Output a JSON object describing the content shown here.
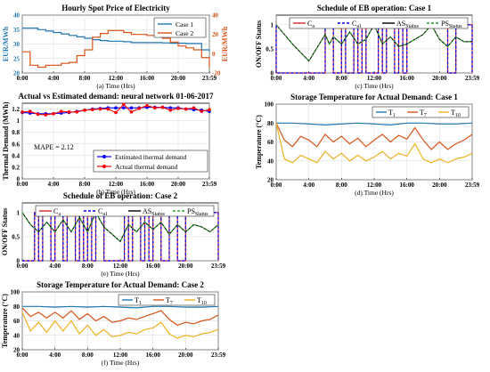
{
  "chart_data": [
    {
      "id": "a",
      "type": "line",
      "title": "Hourly Spot Price of Electricity",
      "caption": "(a) Time (Hrs)",
      "ylabel_left": "EUR/MWh",
      "ylabel_right": "EUR/MWh",
      "xticks": [
        "0:00",
        "4:00",
        "8:00",
        "12:00",
        "16:00",
        "20:00",
        "23:59"
      ],
      "xlim": [
        0,
        24
      ],
      "ylim_left": [
        20,
        40
      ],
      "yticks_left": [
        "20",
        "25",
        "30",
        "35",
        "40"
      ],
      "ylim_right": [
        -20,
        40
      ],
      "yticks_right": [
        "-20",
        "0",
        "20",
        "40"
      ],
      "legend": [
        "Case 1",
        "Case 2"
      ],
      "series": [
        {
          "name": "Case 1",
          "color": "#1f77b4",
          "axis": "left",
          "x": [
            0,
            1,
            2,
            3,
            4,
            5,
            6,
            7,
            8,
            9,
            10,
            11,
            12,
            13,
            14,
            15,
            16,
            17,
            18,
            19,
            20,
            21,
            22,
            23,
            24
          ],
          "y": [
            35.5,
            35.5,
            35,
            34.5,
            34,
            33.5,
            33,
            32.5,
            32,
            31.5,
            31.2,
            31,
            31,
            30.8,
            30.5,
            30.5,
            30.5,
            30.5,
            30.4,
            30.3,
            30.3,
            30.2,
            30.2,
            28,
            27.5
          ]
        },
        {
          "name": "Case 2",
          "color": "#d95319",
          "axis": "right",
          "x": [
            0,
            1,
            2,
            3,
            4,
            5,
            6,
            7,
            8,
            9,
            10,
            11,
            12,
            13,
            14,
            15,
            16,
            17,
            18,
            19,
            20,
            21,
            22,
            23,
            24
          ],
          "y": [
            2,
            -12,
            -14,
            -12,
            -12,
            -10,
            -9,
            -2,
            4,
            17,
            21,
            24,
            24,
            22,
            20,
            20,
            19,
            18,
            16,
            12,
            8,
            6,
            4,
            -4,
            -14
          ]
        }
      ]
    },
    {
      "id": "b",
      "type": "line",
      "title": "Actual vs Estimated demand: neural network 01-06-2017",
      "caption": "(b) Time (Hrs)",
      "ylabel": "Thermal Demand (MWh)",
      "xticks": [
        "0:00",
        "4:00",
        "8:00",
        "12:00",
        "16:00",
        "20:00",
        "23:59"
      ],
      "xlim": [
        0,
        24
      ],
      "ylim": [
        0,
        1.3
      ],
      "yticks": [
        "0",
        "0.2",
        "0.4",
        "0.6",
        "0.8",
        "1",
        "1.2"
      ],
      "annotation": "MAPE = 2.12",
      "legend": [
        "Estimated thermal demand",
        "Actual  thermal demand"
      ],
      "series": [
        {
          "name": "Estimated thermal demand",
          "color": "#0000ff",
          "x": [
            0,
            1,
            2,
            3,
            4,
            5,
            6,
            7,
            8,
            9,
            10,
            11,
            12,
            13,
            14,
            15,
            16,
            17,
            18,
            19,
            20,
            21,
            22,
            23,
            24
          ],
          "y": [
            1.14,
            1.13,
            1.12,
            1.12,
            1.12,
            1.13,
            1.14,
            1.16,
            1.18,
            1.2,
            1.21,
            1.22,
            1.22,
            1.22,
            1.22,
            1.22,
            1.23,
            1.23,
            1.23,
            1.22,
            1.22,
            1.2,
            1.19,
            1.18,
            1.16
          ]
        },
        {
          "name": "Actual  thermal demand",
          "color": "#ff0000",
          "x": [
            0,
            1,
            2,
            3,
            4,
            5,
            6,
            7,
            8,
            9,
            10,
            11,
            12,
            13,
            14,
            15,
            16,
            17,
            18,
            19,
            20,
            21,
            22,
            23,
            24
          ],
          "y": [
            1.15,
            1.16,
            1.11,
            1.1,
            1.12,
            1.16,
            1.15,
            1.15,
            1.18,
            1.19,
            1.2,
            1.2,
            1.14,
            1.28,
            1.15,
            1.21,
            1.26,
            1.22,
            1.23,
            1.18,
            1.21,
            1.2,
            1.22,
            1.16,
            1.19
          ]
        }
      ]
    },
    {
      "id": "c",
      "type": "line",
      "title": "Schedule of EB operation: Case 1",
      "caption": "(c) Time (Hrs)",
      "ylabel": "ON/OFF Status",
      "xticks": [
        "0:00",
        "4:00",
        "8:00",
        "12:00",
        "16:00",
        "20:00",
        "23:59"
      ],
      "xlim": [
        0,
        24
      ],
      "ylim": [
        0,
        1.2
      ],
      "yticks": [
        "0",
        "0.5",
        "1"
      ],
      "legend_labels": [
        {
          "main": "C",
          "sub": "a"
        },
        {
          "main": "C",
          "sub": "a1"
        },
        {
          "main": "AS",
          "sub": "Status"
        },
        {
          "main": "PS",
          "sub": "Status"
        }
      ],
      "colors": [
        "#d62728",
        "#0000ff",
        "#000000",
        "#2ca02c"
      ],
      "on_intervals": [
        [
          0,
          0
        ],
        [
          6,
          7
        ],
        [
          8,
          8.5
        ],
        [
          9.5,
          10
        ],
        [
          10.5,
          11
        ],
        [
          12.5,
          13
        ],
        [
          13.5,
          14.5
        ],
        [
          15,
          15.5
        ],
        [
          16,
          21
        ],
        [
          22,
          24
        ]
      ],
      "status_x": [
        0,
        2,
        4,
        6,
        6.5,
        7,
        8,
        9,
        10,
        11,
        12,
        13,
        14,
        15,
        16,
        17,
        18,
        19,
        20,
        21,
        22,
        23,
        24
      ],
      "status_y": [
        1,
        0.6,
        0.25,
        0.8,
        0.6,
        0.75,
        0.6,
        0.85,
        0.6,
        0.7,
        1,
        0.6,
        0.75,
        0.55,
        0.6,
        0.7,
        0.8,
        1,
        0.7,
        0.55,
        0.75,
        0.65,
        0.65
      ]
    },
    {
      "id": "d",
      "type": "line",
      "title": "Storage Temperature for Actual Demand: Case 1",
      "caption": "(d) Time (Hrs)",
      "ylabel": "Temperature (°C)",
      "xticks": [
        "0:00",
        "4:00",
        "8:00",
        "12:00",
        "16:00",
        "20:00",
        "23:59"
      ],
      "xlim": [
        0,
        24
      ],
      "ylim": [
        20,
        100
      ],
      "yticks": [
        "20",
        "40",
        "60",
        "80",
        "100"
      ],
      "legend_labels": [
        {
          "main": "T",
          "sub": "1"
        },
        {
          "main": "T",
          "sub": "7"
        },
        {
          "main": "T",
          "sub": "10"
        }
      ],
      "series": [
        {
          "name": "T1",
          "color": "#1f77b4",
          "x": [
            0,
            2,
            4,
            6,
            8,
            10,
            12,
            14,
            16,
            18,
            20,
            22,
            24
          ],
          "y": [
            80,
            80,
            79,
            78,
            79,
            80,
            79,
            78,
            80,
            80,
            79,
            79,
            80
          ]
        },
        {
          "name": "T7",
          "color": "#d95319",
          "x": [
            0,
            1,
            2,
            3,
            4,
            5,
            6,
            7,
            8,
            9,
            10,
            11,
            12,
            13,
            14,
            15,
            16,
            17,
            18,
            19,
            20,
            21,
            22,
            23,
            24
          ],
          "y": [
            80,
            62,
            55,
            66,
            62,
            55,
            68,
            60,
            66,
            58,
            64,
            55,
            62,
            68,
            60,
            67,
            63,
            75,
            62,
            52,
            60,
            52,
            58,
            62,
            68
          ]
        },
        {
          "name": "T10",
          "color": "#edb120",
          "x": [
            0,
            1,
            2,
            3,
            4,
            5,
            6,
            7,
            8,
            9,
            10,
            11,
            12,
            13,
            14,
            15,
            16,
            17,
            18,
            19,
            20,
            21,
            22,
            23,
            24
          ],
          "y": [
            80,
            42,
            38,
            46,
            42,
            38,
            50,
            42,
            48,
            40,
            46,
            40,
            44,
            50,
            42,
            48,
            45,
            58,
            42,
            38,
            42,
            38,
            42,
            44,
            48
          ]
        }
      ]
    },
    {
      "id": "e",
      "type": "line",
      "title": "Schedule of EB operation: Case 2",
      "caption": "(e) Time (Hrs)",
      "ylabel": "ON/OFF Status",
      "xticks": [
        "0:00",
        "4:00",
        "8:00",
        "12:00",
        "16:00",
        "20:00",
        "23:59"
      ],
      "xlim": [
        0,
        24
      ],
      "ylim": [
        0,
        1.2
      ],
      "yticks": [
        "0",
        "0.5",
        "1"
      ],
      "legend_labels": [
        {
          "main": "C",
          "sub": "a"
        },
        {
          "main": "C",
          "sub": "a1"
        },
        {
          "main": "AS",
          "sub": "Status"
        },
        {
          "main": "PS",
          "sub": "Status"
        }
      ],
      "colors": [
        "#d62728",
        "#0000ff",
        "#000000",
        "#2ca02c"
      ],
      "on_intervals": [
        [
          1.5,
          2
        ],
        [
          2.5,
          3.5
        ],
        [
          4,
          5
        ],
        [
          5.5,
          6.5
        ],
        [
          7,
          7.5
        ],
        [
          8,
          8.5
        ],
        [
          9,
          10
        ],
        [
          12.5,
          13
        ],
        [
          13.5,
          14.5
        ],
        [
          15,
          15.5
        ],
        [
          16,
          17
        ],
        [
          18,
          19
        ],
        [
          20,
          24
        ]
      ],
      "status_x": [
        0,
        1,
        2,
        3,
        4,
        5,
        6,
        7,
        8,
        9,
        10,
        11,
        12,
        13,
        14,
        15,
        16,
        17,
        18,
        19,
        20,
        21,
        22,
        23,
        24
      ],
      "status_y": [
        1,
        0.75,
        0.6,
        0.8,
        0.6,
        0.85,
        0.6,
        0.9,
        0.6,
        1,
        0.7,
        0.55,
        0.4,
        0.75,
        0.6,
        0.8,
        0.65,
        0.8,
        0.55,
        0.75,
        0.6,
        0.75,
        0.7,
        0.6,
        0.75
      ]
    },
    {
      "id": "f",
      "type": "line",
      "title": "Storage Temperature for Actual Demand: Case 2",
      "caption": "(f) Time (Hrs)",
      "ylabel": "Temperature (°C)",
      "xticks": [
        "0:00",
        "4:00",
        "8:00",
        "12:00",
        "16:00",
        "20:00",
        "23:59"
      ],
      "xlim": [
        0,
        24
      ],
      "ylim": [
        20,
        100
      ],
      "yticks": [
        "20",
        "40",
        "60",
        "80",
        "100"
      ],
      "legend_labels": [
        {
          "main": "T",
          "sub": "1"
        },
        {
          "main": "T",
          "sub": "7"
        },
        {
          "main": "T",
          "sub": "10"
        }
      ],
      "series": [
        {
          "name": "T1",
          "color": "#1f77b4",
          "x": [
            0,
            2,
            4,
            6,
            8,
            10,
            12,
            14,
            16,
            18,
            20,
            22,
            24
          ],
          "y": [
            80,
            80,
            79,
            80,
            79,
            80,
            79,
            78,
            80,
            80,
            79,
            79,
            80
          ]
        },
        {
          "name": "T7",
          "color": "#d95319",
          "x": [
            0,
            1,
            2,
            3,
            4,
            5,
            6,
            7,
            8,
            9,
            10,
            11,
            12,
            13,
            14,
            15,
            16,
            17,
            18,
            19,
            20,
            21,
            22,
            23,
            24
          ],
          "y": [
            78,
            66,
            72,
            64,
            72,
            64,
            74,
            62,
            70,
            60,
            66,
            58,
            60,
            64,
            62,
            66,
            70,
            74,
            62,
            54,
            58,
            56,
            60,
            62,
            68
          ]
        },
        {
          "name": "T10",
          "color": "#edb120",
          "x": [
            0,
            1,
            2,
            3,
            4,
            5,
            6,
            7,
            8,
            9,
            10,
            11,
            12,
            13,
            14,
            15,
            16,
            17,
            18,
            19,
            20,
            21,
            22,
            23,
            24
          ],
          "y": [
            72,
            46,
            58,
            44,
            60,
            46,
            60,
            42,
            54,
            40,
            48,
            38,
            40,
            44,
            42,
            48,
            50,
            58,
            42,
            36,
            40,
            38,
            42,
            44,
            48
          ]
        }
      ]
    }
  ]
}
